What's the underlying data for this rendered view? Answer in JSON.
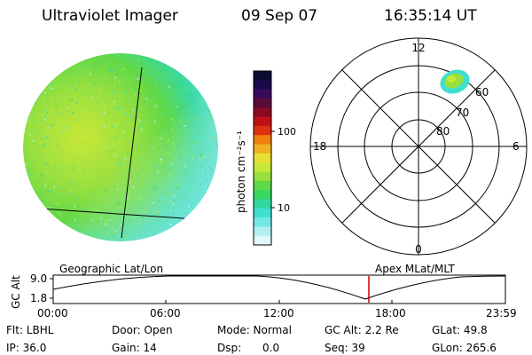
{
  "header": {
    "title": "Ultraviolet Imager",
    "date": "09 Sep 07",
    "time": "16:35:14 UT"
  },
  "colorbar": {
    "label": "photon cm⁻²s⁻¹",
    "tick_labels": [
      "100",
      "10"
    ],
    "colors": [
      "#0b0b33",
      "#1a0a4a",
      "#3a0a5a",
      "#5a0a3a",
      "#8a0a20",
      "#c01018",
      "#e03010",
      "#f08010",
      "#f0b020",
      "#e8e030",
      "#c8e838",
      "#98e040",
      "#60d848",
      "#38d860",
      "#30d8a0",
      "#40e0d0",
      "#70e8e8",
      "#b0f0f0",
      "#e0f8f8"
    ]
  },
  "polar": {
    "mlt_labels": {
      "top": "12",
      "left": "18",
      "right": "6",
      "bottom": "0"
    },
    "lat_labels": [
      "60",
      "70",
      "80"
    ]
  },
  "timeline": {
    "y_axis_label": "GC Alt",
    "y_ticks": [
      "9.0",
      "1.8"
    ],
    "left_label": "Geographic Lat/Lon",
    "right_label": "Apex  MLat/MLT",
    "x_ticks": [
      "00:00",
      "06:00",
      "12:00",
      "18:00",
      "23:59"
    ],
    "current_time_fraction": 0.698
  },
  "info": {
    "filter": "Flt: LBHL",
    "ip": "IP: 36.0",
    "door": "Door: Open",
    "gain": "Gain: 14",
    "mode": "Mode: Normal",
    "dsp_label": "Dsp:",
    "dsp_value": "0.0",
    "gc_alt": "GC Alt: 2.2 Re",
    "seq": "Seq: 39",
    "glat": "GLat:  49.8",
    "glon": "GLon: 265.6"
  },
  "colors": {
    "marker": "#d00000",
    "line": "#000000"
  }
}
